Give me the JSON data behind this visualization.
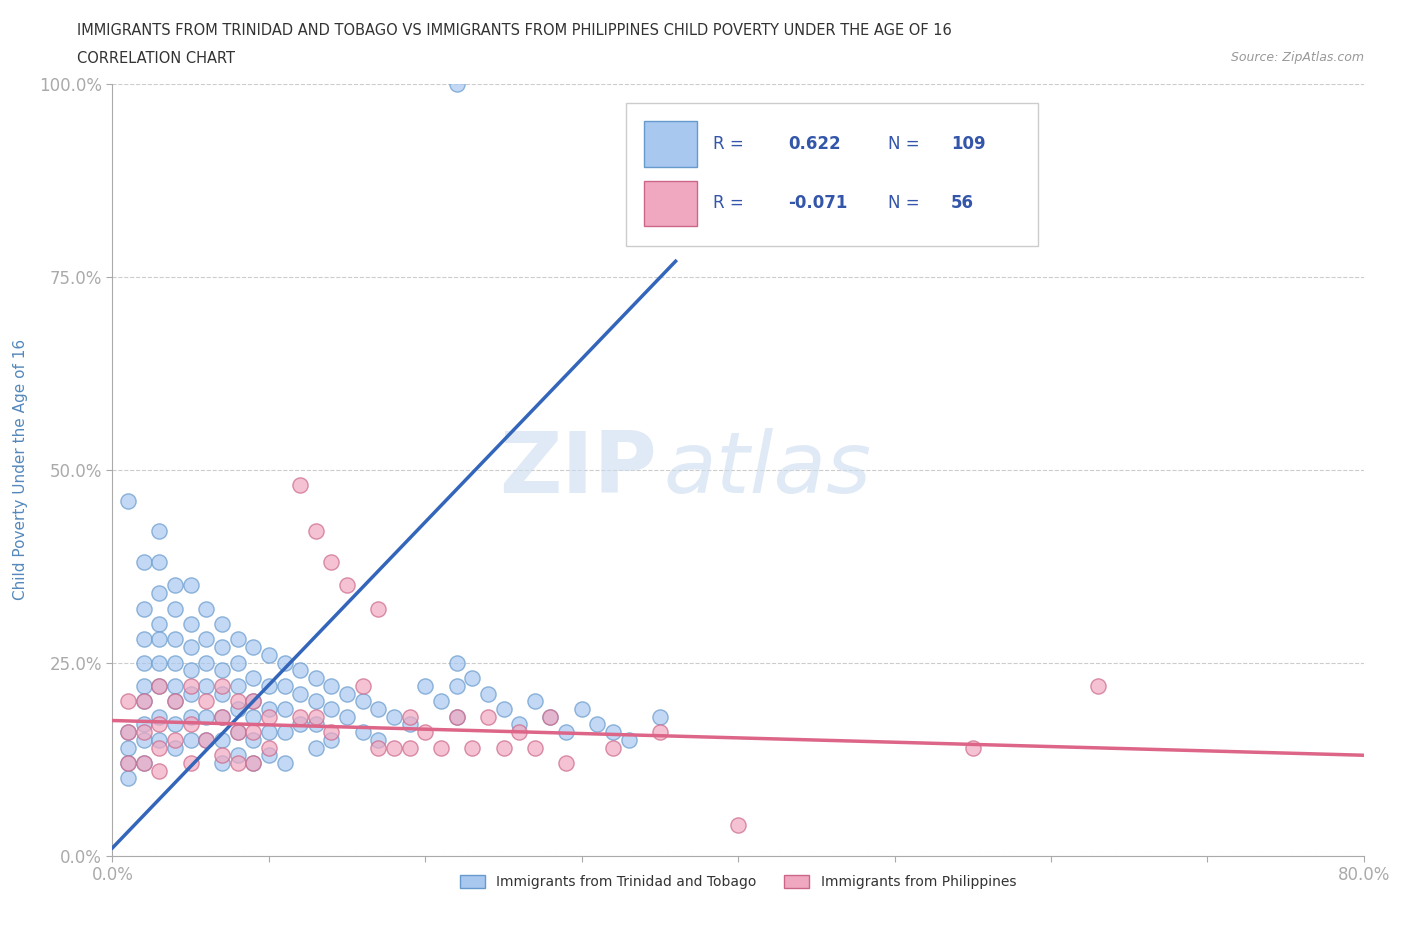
{
  "title_line1": "IMMIGRANTS FROM TRINIDAD AND TOBAGO VS IMMIGRANTS FROM PHILIPPINES CHILD POVERTY UNDER THE AGE OF 16",
  "title_line2": "CORRELATION CHART",
  "source_text": "Source: ZipAtlas.com",
  "ylabel": "Child Poverty Under the Age of 16",
  "xlim": [
    0.0,
    0.8
  ],
  "ylim": [
    0.0,
    1.0
  ],
  "xticks": [
    0.0,
    0.1,
    0.2,
    0.3,
    0.4,
    0.5,
    0.6,
    0.7,
    0.8
  ],
  "yticks": [
    0.0,
    0.25,
    0.5,
    0.75,
    1.0
  ],
  "series1_color": "#a8c8f0",
  "series1_edge": "#6699cc",
  "series1_label": "Immigrants from Trinidad and Tobago",
  "series1_R": 0.622,
  "series1_N": 109,
  "series1_line_color": "#3366bb",
  "series2_color": "#f0a8c0",
  "series2_edge": "#cc6688",
  "series2_label": "Immigrants from Philippines",
  "series2_R": -0.071,
  "series2_N": 56,
  "series2_line_color": "#dd6688",
  "watermark_zip": "ZIP",
  "watermark_atlas": "atlas",
  "background_color": "#ffffff",
  "grid_color": "#cccccc",
  "title_color": "#333333",
  "axis_label_color": "#5588bb",
  "legend_R_color": "#3355aa",
  "reg_line1_x0": 0.0,
  "reg_line1_y0": 0.01,
  "reg_line1_x1": 0.36,
  "reg_line1_y1": 0.77,
  "reg_line2_x0": 0.0,
  "reg_line2_y0": 0.175,
  "reg_line2_x1": 0.8,
  "reg_line2_y1": 0.13,
  "series1_x": [
    0.22,
    0.01,
    0.01,
    0.01,
    0.01,
    0.01,
    0.02,
    0.02,
    0.02,
    0.02,
    0.02,
    0.02,
    0.02,
    0.02,
    0.02,
    0.03,
    0.03,
    0.03,
    0.03,
    0.03,
    0.03,
    0.03,
    0.03,
    0.03,
    0.04,
    0.04,
    0.04,
    0.04,
    0.04,
    0.04,
    0.04,
    0.04,
    0.05,
    0.05,
    0.05,
    0.05,
    0.05,
    0.05,
    0.05,
    0.06,
    0.06,
    0.06,
    0.06,
    0.06,
    0.06,
    0.07,
    0.07,
    0.07,
    0.07,
    0.07,
    0.07,
    0.07,
    0.08,
    0.08,
    0.08,
    0.08,
    0.08,
    0.08,
    0.09,
    0.09,
    0.09,
    0.09,
    0.09,
    0.09,
    0.1,
    0.1,
    0.1,
    0.1,
    0.1,
    0.11,
    0.11,
    0.11,
    0.11,
    0.11,
    0.12,
    0.12,
    0.12,
    0.13,
    0.13,
    0.13,
    0.13,
    0.14,
    0.14,
    0.14,
    0.15,
    0.15,
    0.16,
    0.16,
    0.17,
    0.17,
    0.18,
    0.19,
    0.2,
    0.21,
    0.22,
    0.22,
    0.22,
    0.23,
    0.24,
    0.25,
    0.26,
    0.27,
    0.28,
    0.29,
    0.3,
    0.31,
    0.32,
    0.33,
    0.35
  ],
  "series1_y": [
    1.0,
    0.46,
    0.16,
    0.14,
    0.12,
    0.1,
    0.38,
    0.32,
    0.28,
    0.25,
    0.22,
    0.2,
    0.17,
    0.15,
    0.12,
    0.42,
    0.38,
    0.34,
    0.3,
    0.28,
    0.25,
    0.22,
    0.18,
    0.15,
    0.35,
    0.32,
    0.28,
    0.25,
    0.22,
    0.2,
    0.17,
    0.14,
    0.35,
    0.3,
    0.27,
    0.24,
    0.21,
    0.18,
    0.15,
    0.32,
    0.28,
    0.25,
    0.22,
    0.18,
    0.15,
    0.3,
    0.27,
    0.24,
    0.21,
    0.18,
    0.15,
    0.12,
    0.28,
    0.25,
    0.22,
    0.19,
    0.16,
    0.13,
    0.27,
    0.23,
    0.2,
    0.18,
    0.15,
    0.12,
    0.26,
    0.22,
    0.19,
    0.16,
    0.13,
    0.25,
    0.22,
    0.19,
    0.16,
    0.12,
    0.24,
    0.21,
    0.17,
    0.23,
    0.2,
    0.17,
    0.14,
    0.22,
    0.19,
    0.15,
    0.21,
    0.18,
    0.2,
    0.16,
    0.19,
    0.15,
    0.18,
    0.17,
    0.22,
    0.2,
    0.25,
    0.22,
    0.18,
    0.23,
    0.21,
    0.19,
    0.17,
    0.2,
    0.18,
    0.16,
    0.19,
    0.17,
    0.16,
    0.15,
    0.18
  ],
  "series2_x": [
    0.01,
    0.01,
    0.01,
    0.02,
    0.02,
    0.02,
    0.03,
    0.03,
    0.03,
    0.03,
    0.04,
    0.04,
    0.05,
    0.05,
    0.05,
    0.06,
    0.06,
    0.07,
    0.07,
    0.07,
    0.08,
    0.08,
    0.08,
    0.09,
    0.09,
    0.09,
    0.1,
    0.1,
    0.12,
    0.12,
    0.13,
    0.13,
    0.14,
    0.14,
    0.15,
    0.16,
    0.17,
    0.17,
    0.18,
    0.19,
    0.19,
    0.2,
    0.21,
    0.22,
    0.23,
    0.24,
    0.25,
    0.26,
    0.27,
    0.28,
    0.29,
    0.32,
    0.35,
    0.4,
    0.55,
    0.63
  ],
  "series2_y": [
    0.2,
    0.16,
    0.12,
    0.2,
    0.16,
    0.12,
    0.22,
    0.17,
    0.14,
    0.11,
    0.2,
    0.15,
    0.22,
    0.17,
    0.12,
    0.2,
    0.15,
    0.22,
    0.18,
    0.13,
    0.2,
    0.16,
    0.12,
    0.2,
    0.16,
    0.12,
    0.18,
    0.14,
    0.48,
    0.18,
    0.42,
    0.18,
    0.38,
    0.16,
    0.35,
    0.22,
    0.32,
    0.14,
    0.14,
    0.18,
    0.14,
    0.16,
    0.14,
    0.18,
    0.14,
    0.18,
    0.14,
    0.16,
    0.14,
    0.18,
    0.12,
    0.14,
    0.16,
    0.04,
    0.14,
    0.22
  ]
}
